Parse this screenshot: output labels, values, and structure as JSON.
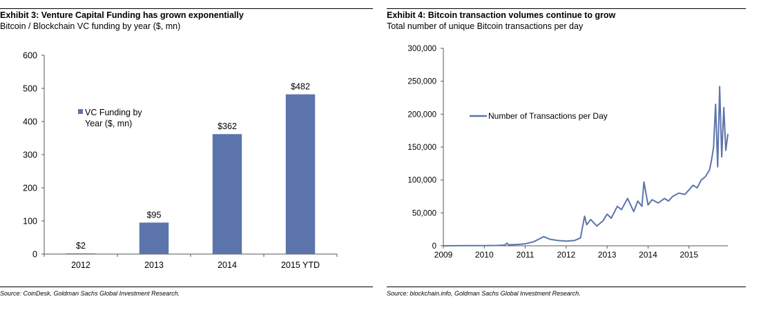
{
  "left_panel": {
    "title": "Exhibit 3: Venture Capital Funding has grown exponentially",
    "subtitle": "Bitcoin / Blockchain VC funding by year ($, mn)",
    "source": "Source: CoinDesk, Goldman Sachs Global Investment Research."
  },
  "right_panel": {
    "title": "Exhibit 4: Bitcoin transaction volumes continue to grow",
    "subtitle": "Total number of unique Bitcoin transactions per day",
    "source": "Source: blockchain.info, Goldman Sachs Global Investment Research."
  },
  "chart_data": [
    {
      "type": "bar",
      "categories": [
        "2012",
        "2013",
        "2014",
        "2015 YTD"
      ],
      "series": [
        {
          "name": "VC Funding by Year ($, mn)",
          "values": [
            2,
            95,
            362,
            482
          ],
          "color": "#5b74ab"
        }
      ],
      "data_labels": [
        "$2",
        "$95",
        "$362",
        "$482"
      ],
      "legend_lines": [
        "VC Funding by",
        "Year ($, mn)"
      ],
      "yticks": [
        "0",
        "100",
        "200",
        "300",
        "400",
        "500",
        "600"
      ],
      "ylim": [
        0,
        600
      ],
      "legend_position": "upper-left",
      "grid": false
    },
    {
      "type": "line",
      "xticks": [
        "2009",
        "2010",
        "2011",
        "2012",
        "2013",
        "2014",
        "2015"
      ],
      "xlim": [
        2009,
        2015.95
      ],
      "yticks": [
        "0",
        "50,000",
        "100,000",
        "150,000",
        "200,000",
        "250,000",
        "300,000"
      ],
      "ylim": [
        0,
        300000
      ],
      "legend_position": "upper-left",
      "grid": false,
      "series": [
        {
          "name": "Number of Transactions per Day",
          "color": "#5b74ab",
          "x": [
            2009.0,
            2009.5,
            2010.0,
            2010.3,
            2010.5,
            2010.55,
            2010.6,
            2010.8,
            2011.0,
            2011.2,
            2011.3,
            2011.45,
            2011.6,
            2011.8,
            2012.0,
            2012.2,
            2012.35,
            2012.45,
            2012.5,
            2012.6,
            2012.75,
            2012.9,
            2013.0,
            2013.1,
            2013.25,
            2013.35,
            2013.5,
            2013.65,
            2013.75,
            2013.85,
            2013.9,
            2014.0,
            2014.1,
            2014.25,
            2014.4,
            2014.5,
            2014.6,
            2014.75,
            2014.9,
            2015.0,
            2015.1,
            2015.2,
            2015.3,
            2015.4,
            2015.5,
            2015.55,
            2015.6,
            2015.65,
            2015.7,
            2015.75,
            2015.8,
            2015.85,
            2015.9,
            2015.95
          ],
          "y": [
            0,
            200,
            300,
            500,
            1000,
            4000,
            1500,
            2000,
            3000,
            6000,
            9000,
            14000,
            10000,
            8000,
            7000,
            8000,
            12000,
            45000,
            32000,
            40000,
            30000,
            38000,
            48000,
            42000,
            60000,
            55000,
            72000,
            52000,
            68000,
            60000,
            97000,
            62000,
            70000,
            65000,
            72000,
            68000,
            75000,
            80000,
            78000,
            85000,
            92000,
            88000,
            100000,
            105000,
            115000,
            130000,
            150000,
            215000,
            120000,
            242000,
            135000,
            210000,
            145000,
            170000
          ]
        }
      ]
    }
  ]
}
